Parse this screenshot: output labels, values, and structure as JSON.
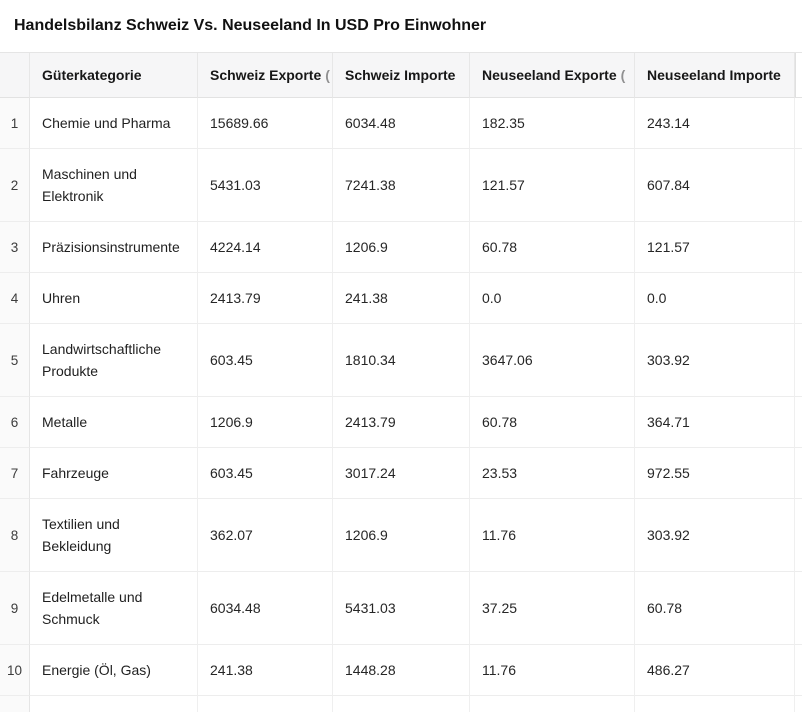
{
  "title": "Handelsbilanz Schweiz Vs. Neuseeland In USD Pro Einwohner",
  "table": {
    "truncation_mark": "(",
    "columns": [
      {
        "label": "Güterkategorie"
      },
      {
        "label": "Schweiz Exporte",
        "truncated": true
      },
      {
        "label": "Schweiz Importe"
      },
      {
        "label": "Neuseeland Exporte",
        "truncated": true
      },
      {
        "label": "Neuseeland Importe"
      }
    ],
    "rows": [
      {
        "index": "1",
        "category": "Chemie und Pharma",
        "values": [
          "15689.66",
          "6034.48",
          "182.35",
          "243.14"
        ]
      },
      {
        "index": "2",
        "category": "Maschinen und Elektronik",
        "values": [
          "5431.03",
          "7241.38",
          "121.57",
          "607.84"
        ]
      },
      {
        "index": "3",
        "category": "Präzisionsinstrumente",
        "values": [
          "4224.14",
          "1206.9",
          "60.78",
          "121.57"
        ]
      },
      {
        "index": "4",
        "category": "Uhren",
        "values": [
          "2413.79",
          "241.38",
          "0.0",
          "0.0"
        ]
      },
      {
        "index": "5",
        "category": "Landwirtschaftliche Produkte",
        "values": [
          "603.45",
          "1810.34",
          "3647.06",
          "303.92"
        ]
      },
      {
        "index": "6",
        "category": "Metalle",
        "values": [
          "1206.9",
          "2413.79",
          "60.78",
          "364.71"
        ]
      },
      {
        "index": "7",
        "category": "Fahrzeuge",
        "values": [
          "603.45",
          "3017.24",
          "23.53",
          "972.55"
        ]
      },
      {
        "index": "8",
        "category": "Textilien und Bekleidung",
        "values": [
          "362.07",
          "1206.9",
          "11.76",
          "303.92"
        ]
      },
      {
        "index": "9",
        "category": "Edelmetalle und Schmuck",
        "values": [
          "6034.48",
          "5431.03",
          "37.25",
          "60.78"
        ]
      },
      {
        "index": "10",
        "category": "Energie (Öl, Gas)",
        "values": [
          "241.38",
          "1448.28",
          "11.76",
          "486.27"
        ]
      }
    ]
  },
  "chart_data": {
    "type": "table",
    "title": "Handelsbilanz Schweiz Vs. Neuseeland In USD Pro Einwohner",
    "columns": [
      "Güterkategorie",
      "Schweiz Exporte",
      "Schweiz Importe",
      "Neuseeland Exporte",
      "Neuseeland Importe"
    ],
    "rows": [
      [
        "Chemie und Pharma",
        15689.66,
        6034.48,
        182.35,
        243.14
      ],
      [
        "Maschinen und Elektronik",
        5431.03,
        7241.38,
        121.57,
        607.84
      ],
      [
        "Präzisionsinstrumente",
        4224.14,
        1206.9,
        60.78,
        121.57
      ],
      [
        "Uhren",
        2413.79,
        241.38,
        0.0,
        0.0
      ],
      [
        "Landwirtschaftliche Produkte",
        603.45,
        1810.34,
        3647.06,
        303.92
      ],
      [
        "Metalle",
        1206.9,
        2413.79,
        60.78,
        364.71
      ],
      [
        "Fahrzeuge",
        603.45,
        3017.24,
        23.53,
        972.55
      ],
      [
        "Textilien und Bekleidung",
        362.07,
        1206.9,
        11.76,
        303.92
      ],
      [
        "Edelmetalle und Schmuck",
        6034.48,
        5431.03,
        37.25,
        60.78
      ],
      [
        "Energie (Öl, Gas)",
        241.38,
        1448.28,
        11.76,
        486.27
      ]
    ],
    "units": "USD pro Einwohner",
    "layout": {
      "row_index_column": true,
      "header_background": "#f6f6f7",
      "grid": true
    }
  },
  "colors": {
    "header_bg": "#f6f6f7",
    "index_bg": "#fafafa",
    "border": "#ededed",
    "text": "#262626",
    "title_text": "#111111"
  }
}
